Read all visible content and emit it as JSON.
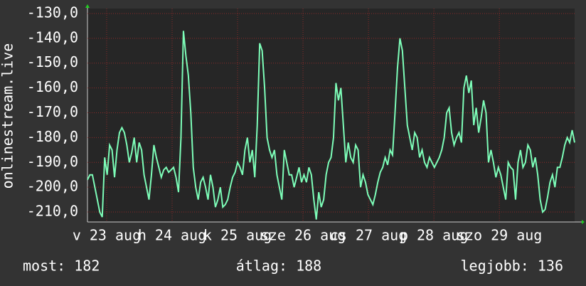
{
  "chart_data": {
    "type": "line",
    "y_label": "onlinestream.live",
    "color": "#7dfdb8",
    "grid": true,
    "xlim": [
      0,
      198
    ],
    "xticks": [
      {
        "value": 7.8,
        "label": "v 23 aug"
      },
      {
        "value": 34.4,
        "label": "h 24 aug"
      },
      {
        "value": 61,
        "label": "k 25 aug"
      },
      {
        "value": 87.6,
        "label": "sze 26 aug"
      },
      {
        "value": 114.2,
        "label": "cs 27 aug"
      },
      {
        "value": 140.8,
        "label": "p 28 aug"
      },
      {
        "value": 167.4,
        "label": "szo 29 aug"
      }
    ],
    "ylim": [
      -214,
      -128
    ],
    "yticks": [
      {
        "value": -130,
        "label": "-130,0"
      },
      {
        "value": -140,
        "label": "-140,0"
      },
      {
        "value": -150,
        "label": "-150,0"
      },
      {
        "value": -160,
        "label": "-160,0"
      },
      {
        "value": -170,
        "label": "-170,0"
      },
      {
        "value": -180,
        "label": "-180,0"
      },
      {
        "value": -190,
        "label": "-190,0"
      },
      {
        "value": -200,
        "label": "-200,0"
      },
      {
        "value": -210,
        "label": "-210,0"
      }
    ],
    "values": [
      -197,
      -195,
      -195,
      -200,
      -205,
      -210,
      -212,
      -188,
      -195,
      -183,
      -185,
      -196,
      -185,
      -178,
      -176,
      -178,
      -183,
      -190,
      -186,
      -180,
      -190,
      -182,
      -185,
      -195,
      -200,
      -205,
      -195,
      -183,
      -188,
      -192,
      -196,
      -193,
      -192,
      -194,
      -193,
      -192,
      -196,
      -202,
      -180,
      -137,
      -147,
      -155,
      -170,
      -192,
      -200,
      -205,
      -198,
      -196,
      -200,
      -205,
      -195,
      -200,
      -208,
      -205,
      -200,
      -208,
      -207,
      -205,
      -200,
      -196,
      -194,
      -190,
      -192,
      -195,
      -185,
      -180,
      -190,
      -185,
      -196,
      -175,
      -142,
      -145,
      -160,
      -180,
      -185,
      -188,
      -185,
      -195,
      -200,
      -205,
      -185,
      -190,
      -195,
      -195,
      -200,
      -196,
      -192,
      -198,
      -195,
      -198,
      -192,
      -195,
      -205,
      -213,
      -202,
      -208,
      -205,
      -195,
      -190,
      -188,
      -180,
      -158,
      -165,
      -160,
      -175,
      -190,
      -182,
      -188,
      -190,
      -183,
      -185,
      -200,
      -195,
      -198,
      -203,
      -205,
      -207,
      -203,
      -198,
      -194,
      -192,
      -188,
      -191,
      -185,
      -187,
      -170,
      -152,
      -140,
      -145,
      -160,
      -175,
      -180,
      -185,
      -178,
      -180,
      -188,
      -185,
      -190,
      -192,
      -188,
      -190,
      -192,
      -190,
      -188,
      -185,
      -180,
      -170,
      -168,
      -178,
      -183,
      -180,
      -178,
      -182,
      -160,
      -155,
      -162,
      -157,
      -175,
      -168,
      -178,
      -172,
      -165,
      -170,
      -190,
      -185,
      -190,
      -196,
      -192,
      -195,
      -200,
      -205,
      -190,
      -192,
      -193,
      -205,
      -190,
      -185,
      -192,
      -190,
      -183,
      -185,
      -192,
      -188,
      -195,
      -205,
      -210,
      -209,
      -204,
      -198,
      -195,
      -200,
      -192,
      -192,
      -188,
      -183,
      -180,
      -182,
      -177,
      -182
    ],
    "footer": [
      "most: 182",
      "átlag: 188",
      "legjobb: 136"
    ]
  }
}
